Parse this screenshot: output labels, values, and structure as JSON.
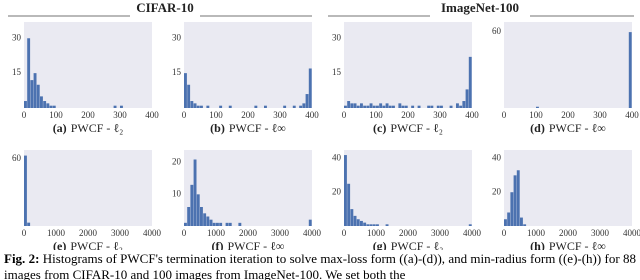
{
  "headers": [
    "CIFAR-10",
    "ImageNet-100"
  ],
  "caption": {
    "label": "Fig. 2:",
    "text": "Histograms of PWCF's termination iteration to solve max-loss form ((a)-(d)), and min-radius form ((e)-(h)) for 88 images from CIFAR-10 and 100 images from ImageNet-100. We set both the"
  },
  "chart_data": [
    {
      "type": "histogram",
      "label": "(a)",
      "title": "PWCF - ℓ₂",
      "color": "#4c72b0",
      "background": "#eaeaf2",
      "bins": [
        0,
        10,
        20,
        30,
        40,
        50,
        60,
        70,
        80,
        90,
        100,
        110,
        120,
        130,
        140,
        150,
        160,
        170,
        180,
        190,
        200,
        210,
        220,
        230,
        240,
        250,
        260,
        270,
        280,
        290,
        300,
        310,
        320,
        330,
        340,
        350,
        360,
        370,
        380,
        390,
        400
      ],
      "counts": [
        3,
        30,
        12,
        15,
        10,
        5,
        3,
        2,
        1,
        1,
        0,
        0,
        0,
        0,
        0,
        0,
        0,
        0,
        0,
        0,
        0,
        0,
        0,
        0,
        0,
        0,
        0,
        0,
        1,
        0,
        1,
        0,
        0,
        0,
        0,
        0,
        0,
        0,
        0,
        0
      ],
      "xlim": [
        0,
        400
      ],
      "xticks": [
        0,
        100,
        200,
        300,
        400
      ],
      "ylim": [
        0,
        37
      ],
      "yticks": [
        15,
        30
      ]
    },
    {
      "type": "histogram",
      "label": "(b)",
      "title": "PWCF - ℓ∞",
      "color": "#4c72b0",
      "background": "#eaeaf2",
      "bins": [
        0,
        10,
        20,
        30,
        40,
        50,
        60,
        70,
        80,
        90,
        100,
        110,
        120,
        130,
        140,
        150,
        160,
        170,
        180,
        190,
        200,
        210,
        220,
        230,
        240,
        250,
        260,
        270,
        280,
        290,
        300,
        310,
        320,
        330,
        340,
        350,
        360,
        370,
        380,
        390,
        400
      ],
      "counts": [
        15,
        10,
        3,
        2,
        1,
        1,
        0,
        1,
        0,
        0,
        0,
        1,
        0,
        0,
        1,
        0,
        0,
        0,
        0,
        0,
        0,
        0,
        1,
        0,
        0,
        1,
        0,
        0,
        0,
        0,
        0,
        1,
        0,
        0,
        1,
        0,
        1,
        2,
        6,
        17
      ],
      "xlim": [
        0,
        400
      ],
      "xticks": [
        0,
        100,
        200,
        300,
        400
      ],
      "ylim": [
        0,
        37
      ],
      "yticks": [
        15,
        30
      ]
    },
    {
      "type": "histogram",
      "label": "(c)",
      "title": "PWCF - ℓ₂",
      "color": "#4c72b0",
      "background": "#eaeaf2",
      "bins": [
        0,
        10,
        20,
        30,
        40,
        50,
        60,
        70,
        80,
        90,
        100,
        110,
        120,
        130,
        140,
        150,
        160,
        170,
        180,
        190,
        200,
        210,
        220,
        230,
        240,
        250,
        260,
        270,
        280,
        290,
        300,
        310,
        320,
        330,
        340,
        350,
        360,
        370,
        380,
        390,
        400
      ],
      "counts": [
        1,
        3,
        2,
        2,
        1,
        2,
        1,
        1,
        2,
        1,
        1,
        2,
        1,
        2,
        1,
        1,
        0,
        2,
        1,
        1,
        0,
        1,
        0,
        1,
        0,
        0,
        1,
        1,
        0,
        1,
        1,
        0,
        0,
        1,
        0,
        2,
        1,
        3,
        8,
        22
      ],
      "xlim": [
        0,
        400
      ],
      "xticks": [
        0,
        100,
        200,
        300,
        400
      ],
      "ylim": [
        0,
        37
      ],
      "yticks": [
        15,
        30
      ]
    },
    {
      "type": "histogram",
      "label": "(d)",
      "title": "PWCF - ℓ∞",
      "color": "#4c72b0",
      "background": "#eaeaf2",
      "bins": [
        0,
        10,
        20,
        30,
        40,
        50,
        60,
        70,
        80,
        90,
        100,
        110,
        120,
        130,
        140,
        150,
        160,
        170,
        180,
        190,
        200,
        210,
        220,
        230,
        240,
        250,
        260,
        270,
        280,
        290,
        300,
        310,
        320,
        330,
        340,
        350,
        360,
        370,
        380,
        390,
        400
      ],
      "counts": [
        0,
        0,
        0,
        0,
        0,
        0,
        0,
        0,
        0,
        0,
        1,
        0,
        0,
        0,
        0,
        0,
        0,
        0,
        0,
        0,
        0,
        0,
        0,
        0,
        0,
        0,
        0,
        0,
        0,
        0,
        0,
        0,
        0,
        0,
        0,
        0,
        0,
        0,
        0,
        60
      ],
      "xlim": [
        0,
        400
      ],
      "xticks": [
        0,
        100,
        200,
        300,
        400
      ],
      "ylim": [
        0,
        68
      ],
      "yticks": [
        60
      ]
    },
    {
      "type": "histogram",
      "label": "(e)",
      "title": "PWCF - ℓ₂",
      "color": "#4c72b0",
      "background": "#eaeaf2",
      "bins": [
        0,
        100,
        200,
        300,
        400,
        500,
        600,
        700,
        800,
        900,
        1000,
        1100,
        1200,
        1300,
        1400,
        1500,
        1600,
        1700,
        1800,
        1900,
        2000,
        2100,
        2200,
        2300,
        2400,
        2500,
        2600,
        2700,
        2800,
        2900,
        3000,
        3100,
        3200,
        3300,
        3400,
        3500,
        3600,
        3700,
        3800,
        3900,
        4000
      ],
      "counts": [
        63,
        3,
        0,
        0,
        0,
        0,
        0,
        0,
        0,
        0,
        0,
        0,
        0,
        0,
        0,
        0,
        0,
        0,
        0,
        0,
        0,
        0,
        0,
        0,
        0,
        0,
        0,
        0,
        0,
        0,
        0,
        0,
        0,
        0,
        0,
        0,
        0,
        0,
        0,
        0
      ],
      "xlim": [
        0,
        4000
      ],
      "xticks": [
        0,
        1000,
        2000,
        3000,
        4000
      ],
      "ylim": [
        0,
        68
      ],
      "yticks": [
        60
      ]
    },
    {
      "type": "histogram",
      "label": "(f)",
      "title": "PWCF - ℓ∞",
      "color": "#4c72b0",
      "background": "#eaeaf2",
      "bins": [
        0,
        100,
        200,
        300,
        400,
        500,
        600,
        700,
        800,
        900,
        1000,
        1100,
        1200,
        1300,
        1400,
        1500,
        1600,
        1700,
        1800,
        1900,
        2000,
        2100,
        2200,
        2300,
        2400,
        2500,
        2600,
        2700,
        2800,
        2900,
        3000,
        3100,
        3200,
        3300,
        3400,
        3500,
        3600,
        3700,
        3800,
        3900,
        4000
      ],
      "counts": [
        1,
        6,
        13,
        21,
        10,
        6,
        4,
        3,
        2,
        1,
        1,
        1,
        0,
        1,
        1,
        0,
        0,
        1,
        0,
        0,
        0,
        0,
        0,
        0,
        0,
        0,
        0,
        0,
        0,
        0,
        0,
        0,
        0,
        0,
        0,
        0,
        0,
        0,
        0,
        2
      ],
      "xlim": [
        0,
        4000
      ],
      "xticks": [
        0,
        1000,
        2000,
        3000,
        4000
      ],
      "ylim": [
        0,
        24
      ],
      "yticks": [
        10,
        20
      ]
    },
    {
      "type": "histogram",
      "label": "(g)",
      "title": "PWCF - ℓ₂",
      "color": "#4c72b0",
      "background": "#eaeaf2",
      "bins": [
        0,
        100,
        200,
        300,
        400,
        500,
        600,
        700,
        800,
        900,
        1000,
        1100,
        1200,
        1300,
        1400,
        1500,
        1600,
        1700,
        1800,
        1900,
        2000,
        2100,
        2200,
        2300,
        2400,
        2500,
        2600,
        2700,
        2800,
        2900,
        3000,
        3100,
        3200,
        3300,
        3400,
        3500,
        3600,
        3700,
        3800,
        3900,
        4000
      ],
      "counts": [
        42,
        25,
        10,
        6,
        4,
        3,
        2,
        1,
        1,
        1,
        1,
        0,
        0,
        1,
        0,
        0,
        0,
        0,
        0,
        0,
        0,
        0,
        0,
        0,
        0,
        0,
        0,
        0,
        0,
        0,
        0,
        0,
        0,
        0,
        0,
        0,
        0,
        0,
        0,
        1
      ],
      "xlim": [
        0,
        4000
      ],
      "xticks": [
        0,
        1000,
        2000,
        3000,
        4000
      ],
      "ylim": [
        0,
        45
      ],
      "yticks": [
        20,
        40
      ]
    },
    {
      "type": "histogram",
      "label": "(h)",
      "title": "PWCF - ℓ∞",
      "color": "#4c72b0",
      "background": "#eaeaf2",
      "bins": [
        0,
        100,
        200,
        300,
        400,
        500,
        600,
        700,
        800,
        900,
        1000,
        1100,
        1200,
        1300,
        1400,
        1500,
        1600,
        1700,
        1800,
        1900,
        2000,
        2100,
        2200,
        2300,
        2400,
        2500,
        2600,
        2700,
        2800,
        2900,
        3000,
        3100,
        3200,
        3300,
        3400,
        3500,
        3600,
        3700,
        3800,
        3900,
        4000
      ],
      "counts": [
        4,
        8,
        20,
        30,
        33,
        5,
        1,
        0,
        0,
        0,
        0,
        0,
        0,
        0,
        0,
        0,
        0,
        0,
        0,
        0,
        0,
        0,
        0,
        0,
        0,
        0,
        0,
        0,
        0,
        0,
        0,
        0,
        0,
        0,
        0,
        0,
        0,
        0,
        0,
        0
      ],
      "xlim": [
        0,
        4000
      ],
      "xticks": [
        0,
        1000,
        2000,
        3000,
        4000
      ],
      "ylim": [
        0,
        45
      ],
      "yticks": [
        20,
        40
      ]
    }
  ]
}
